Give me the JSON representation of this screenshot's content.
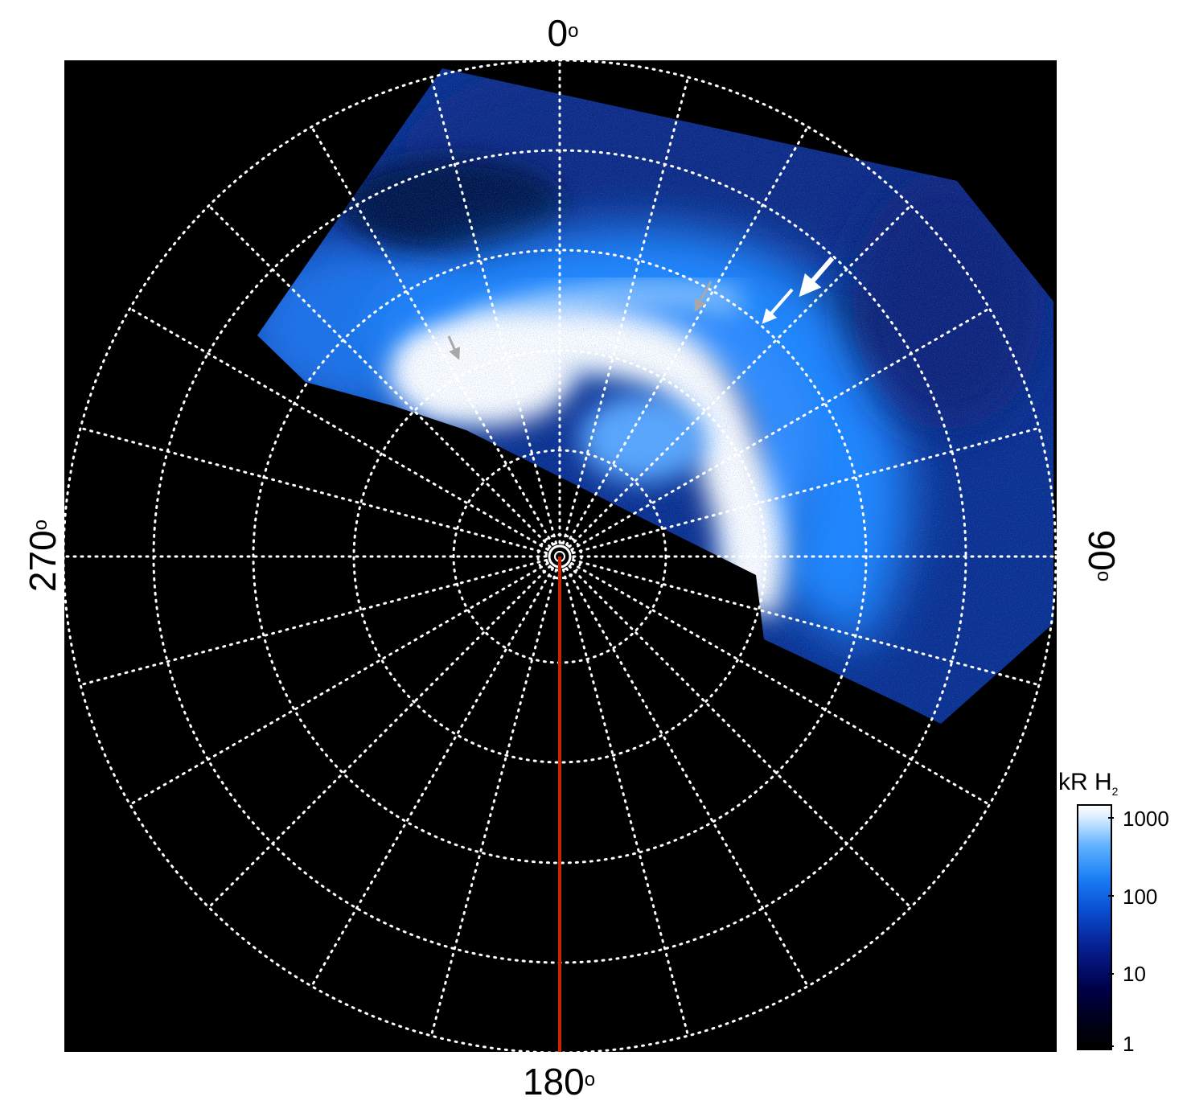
{
  "figure": {
    "labels": {
      "top": "0",
      "right": "90",
      "bottom": "180",
      "left": "270",
      "degree_symbol": "o"
    },
    "colorbar": {
      "title_main": "kR H",
      "title_sub": "2",
      "ticks": [
        "1000",
        "100",
        "10",
        "1"
      ],
      "scale": "log"
    },
    "colors": {
      "background": "#000000",
      "grid": "#ffffff",
      "meridian_line": "#cc2200",
      "aurora_low": "#000040",
      "aurora_mid": "#0a6cf0",
      "aurora_high": "#ffffff",
      "arrow_white": "#ffffff",
      "arrow_gray": "#a8a8a8"
    },
    "icons": [
      "white-arrow-icon",
      "gray-arrow-icon"
    ]
  }
}
